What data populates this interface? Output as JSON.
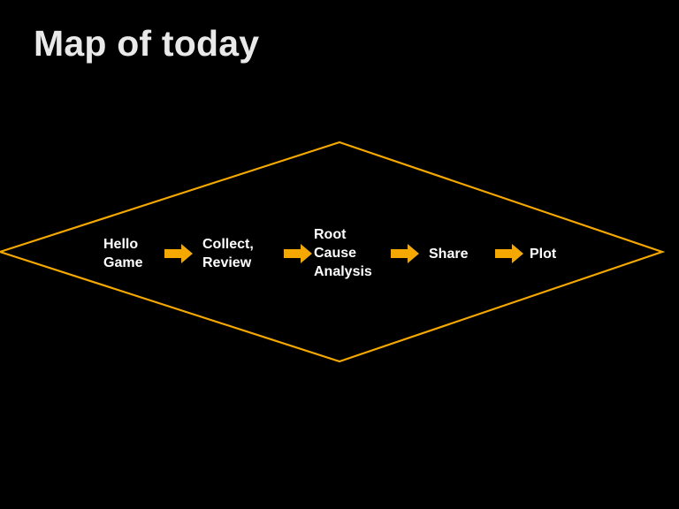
{
  "slide": {
    "title": "Map of today"
  },
  "colors": {
    "background": "#000000",
    "title": "#e9e9e9",
    "accent": "#f5a800",
    "step_text": "#ffffff"
  },
  "process": {
    "steps": [
      {
        "label": "Hello\nGame"
      },
      {
        "label": "Collect,\nReview"
      },
      {
        "label": "Root\nCause\nAnalysis"
      },
      {
        "label": "Share"
      },
      {
        "label": "Plot"
      }
    ],
    "connector_icon": "right-arrow-icon"
  }
}
